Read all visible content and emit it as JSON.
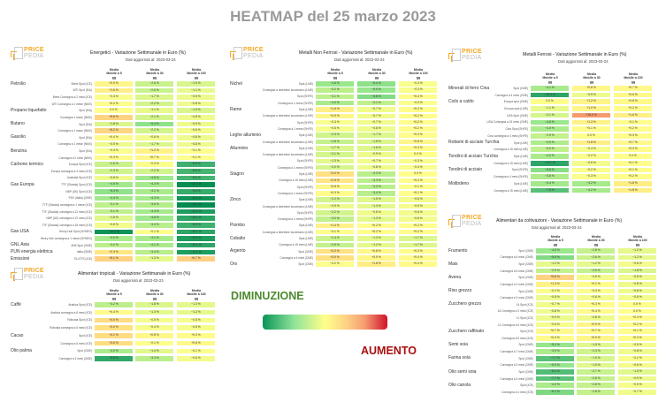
{
  "title": "HEATMAP del 25 marzo 2023",
  "logo": {
    "line1": "PRICE",
    "line2": "PEDIA"
  },
  "columns": [
    "Media Mobile a 5 gg",
    "Media Mobile a 30 gg",
    "Media Mobile a 100 gg"
  ],
  "legend": {
    "decrease": "DIMINUZIONE",
    "increase": "AUMENTO",
    "colors": [
      "#0a9458",
      "#8fe39a",
      "#ffff8a",
      "#fdcf84",
      "#f59b6f",
      "#d0122c"
    ]
  },
  "panels": [
    {
      "title": "Energetici - Variazione Settimanale in Euro (%)",
      "date": "Dati aggiornati al: 2023-03-24",
      "groups": [
        {
          "name": "Petrolio",
          "rows": [
            [
              "Brent Spot (ICE)",
              0.9,
              -2.6,
              -1.9
            ],
            [
              "WTI Spot (EIA)",
              1.6,
              -2.6,
              -1.1
            ],
            [
              "Brent Consegna a 2 mesi (ICE)",
              -0.3,
              -1.7,
              -0.9
            ],
            [
              "WTI Consegna a 1 mese (NMX)",
              0.2,
              -2.2,
              -0.8
            ]
          ]
        },
        {
          "name": "Propano liquefatto",
          "rows": [
            [
              "Spot (EIA)",
              0.0,
              -1.1,
              -1.9
            ],
            [
              "Consegna 1 mese (NMX)",
              5.6,
              -2.1,
              -0.8
            ]
          ]
        },
        {
          "name": "Butano",
          "rows": [
            [
              "Spot (EIA)",
              -1.8,
              -5.3,
              -0.9
            ],
            [
              "Consegna a 1 mese (NMX)",
              5.2,
              -2.2,
              -0.6
            ]
          ]
        },
        {
          "name": "Gasolio",
          "rows": [
            [
              "Spot (EIA)",
              0.4,
              -0.6,
              -0.8
            ],
            [
              "Consegna a 1 mese (NMX)",
              -0.9,
              -1.7,
              -0.8
            ]
          ]
        },
        {
          "name": "Benzina",
          "rows": [
            [
              "Spot (EIA)",
              -0.3,
              1.2,
              -0.1
            ],
            [
              "Consegna a 2 mesi (NMX)",
              0.3,
              0.7,
              -0.1
            ]
          ]
        },
        {
          "name": "Carbone termico",
          "rows": [
            [
              "Europa Spot (ICE)",
              -2.6,
              -0.3,
              -8.9
            ],
            [
              "Europa consegna a 3 mesi (ICE)",
              -2.3,
              -2.2,
              -8.6
            ],
            [
              "Australia Spot (ICE)",
              -0.8,
              -4.6,
              -8.6
            ]
          ]
        },
        {
          "name": "Gas Europa",
          "rows": [
            [
              "TTF (Olanda) Spot (ICE)",
              -4.5,
              -4.3,
              -12.7
            ],
            [
              "NBP (UK) Spot (ICE)",
              -5.3,
              -4.1,
              -9.4
            ],
            [
              "PSV (Italia) (GME)",
              -4.4,
              -4.3,
              -12.1
            ],
            [
              "TTF (Olanda) consegna a 1 mese (ICE)",
              -3.1,
              -3.6,
              -13.1
            ],
            [
              "TTF (Olanda) consegna a 12 mesi (ICE)",
              -3.1,
              -4.3,
              -11.1
            ],
            [
              "NBP (UK) consegna a 12 mesi (ICE)",
              -1.5,
              -4.6,
              -10.1
            ],
            [
              "TTF (Olanda) consegna a 18 mesi (ICE)",
              -0.6,
              -3.4,
              -8.9
            ]
          ]
        },
        {
          "name": "Gas USA",
          "rows": [
            [
              "Henry Hub Spot (NYMEX)",
              -12.1,
              -0.1,
              -10.1
            ],
            [
              "Henry Hub consegna a 1 mese (NYMEX)",
              -4.0,
              -4.1,
              -11.1
            ]
          ]
        },
        {
          "name": "GNL Asia",
          "rows": [
            [
              "JKM Spot (CME)",
              -3.2,
              -4.1,
              -10.1
            ]
          ]
        },
        {
          "name": "PUN energia elettrica",
          "rows": [
            [
              "Italia (GME)",
              2.3,
              -3.4,
              -11.1
            ]
          ]
        },
        {
          "name": "Emissioni",
          "rows": [
            [
              "EU ETS (ICE)",
              6.1,
              -1.3,
              6.7
            ]
          ]
        }
      ]
    },
    {
      "title": "Alimentari tropicali - Variazione Settimanale in Euro (%)",
      "date": "Dati aggiornati al: 2023-03-23",
      "groups": [
        {
          "name": "Caffè",
          "rows": [
            [
              "Arabica Spot (ICE)",
              -3.2,
              -1.8,
              -1.3
            ],
            [
              "Arabica consegna a 6 mesi (ICE)",
              0.4,
              -1.3,
              -1.2
            ],
            [
              "Robusta Spot (ICE)",
              4.0,
              -0.5,
              -0.5
            ],
            [
              "Robusta consegna a 6 mesi (ICE)",
              3.0,
              -0.4,
              -0.5
            ]
          ]
        },
        {
          "name": "Cacao",
          "rows": [
            [
              "Spot (ICE)",
              4.1,
              0.8,
              0.3
            ],
            [
              "Consegna a 6 mesi (ICE)",
              3.6,
              -0.1,
              0.6
            ]
          ]
        },
        {
          "name": "Olio palma",
          "rows": [
            [
              "Spot (CME)",
              -4.0,
              -1.4,
              -0.1
            ],
            [
              "Consegna a 3 mesi (CME)",
              -9.8,
              -3.3,
              -0.6
            ]
          ]
        }
      ]
    },
    {
      "title": "Metalli Non Ferrosi - Variazione Settimanale in Euro (%)",
      "date": "Dati aggiornati al: 2023-03-24",
      "groups": [
        {
          "name": "Nichel",
          "rows": [
            [
              "Spot (LME)",
              -4.8,
              -5.4,
              -0.3
            ],
            [
              "Consegna a dicembre successivo (LME)",
              -3.2,
              -5.0,
              -0.3
            ],
            [
              "Spot (SHFE)",
              -3.1,
              -5.8,
              0.3
            ],
            [
              "Consegna a 1 mese (SHFE)",
              -4.0,
              -3.1,
              -0.3
            ]
          ]
        },
        {
          "name": "Rame",
          "rows": [
            [
              "Spot (LME)",
              1.6,
              -0.7,
              0.2
            ],
            [
              "Consegna a dicembre successivo (LME)",
              0.9,
              -0.7,
              0.2
            ],
            [
              "Spot (SHFE)",
              -0.3,
              -0.7,
              0.2
            ],
            [
              "Consegna a 1 mese (SHFE)",
              -0.5,
              -0.8,
              0.2
            ]
          ]
        },
        {
          "name": "Leghe alluminio",
          "rows": [
            [
              "Spot (LME)",
              -2.3,
              -1.7,
              0.3
            ],
            [
              "Consegna a dicembre successivo (LME)",
              -2.8,
              -1.8,
              0.8
            ]
          ]
        },
        {
          "name": "Alluminio",
          "rows": [
            [
              "Spot (LME)",
              -1.7,
              -1.6,
              0.3
            ],
            [
              "Consegna a dicembre successivo (LME)",
              -2.1,
              -0.9,
              0.0
            ],
            [
              "Spot (SHFE)",
              -1.3,
              -0.7,
              -0.3
            ],
            [
              "Consegna a 1 mese (SHFE)",
              -2.0,
              -0.8,
              -0.3
            ]
          ]
        },
        {
          "name": "Stagno",
          "rows": [
            [
              "Spot (LME)",
              3.0,
              -3.3,
              0.0
            ],
            [
              "Consegna a 15 mesi (LME)",
              2.5,
              -3.3,
              0.2
            ],
            [
              "Spot (SHFE)",
              0.8,
              -3.3,
              -0.1
            ],
            [
              "Consegna a 1 mese (SHFE)",
              0.3,
              -3.4,
              0.1
            ]
          ]
        },
        {
          "name": "Zinco",
          "rows": [
            [
              "Spot (LME)",
              -2.2,
              -1.5,
              -0.6
            ],
            [
              "Consegna a dicembre successivo (LME)",
              -0.9,
              -1.3,
              -0.5
            ],
            [
              "Spot (SHFE)",
              -2.2,
              -0.8,
              -0.6
            ],
            [
              "Consegna a 1 mese (SHFE)",
              -3.0,
              -1.3,
              -0.6
            ]
          ]
        },
        {
          "name": "Piombo",
          "rows": [
            [
              "Spot (LME)",
              1.4,
              0.2,
              0.2
            ],
            [
              "Consegna a dicembre successivo (LME)",
              -0.1,
              0.2,
              0.2
            ]
          ]
        },
        {
          "name": "Cobalto",
          "rows": [
            [
              "Spot (LME)",
              -2.4,
              -1.3,
              -1.7
            ],
            [
              "Consegna a 15 mesi (LME)",
              -2.9,
              -1.2,
              -1.7
            ]
          ]
        },
        {
          "name": "Argento",
          "rows": [
            [
              "Spot (CME)",
              3.0,
              0.8,
              0.3
            ],
            [
              "Consegna a 4 mesi (CME)",
              3.0,
              0.9,
              0.4
            ]
          ]
        },
        {
          "name": "Oro",
          "rows": [
            [
              "Spot (CME)",
              -0.2,
              1.8,
              0.4
            ]
          ]
        }
      ]
    },
    {
      "title": "Metalli Ferrosi - Variazione Settimanale in Euro (%)",
      "date": "Dati aggiornati al: 2023-03-24",
      "groups": [
        {
          "name": "Minerali di ferro Cina",
          "rows": [
            [
              "Spot (CME)",
              -4.1,
              0.8,
              0.7
            ],
            [
              "Consegna a 4 mesi (CME)",
              -10.0,
              -0.9,
              0.6
            ]
          ]
        },
        {
          "name": "Coils a caldo",
          "rows": [
            [
              "Europa spot (CME)",
              0.0,
              1.2,
              0.6
            ],
            [
              "Europa spot (LME)",
              -1.1,
              1.0,
              0.2
            ],
            [
              "USA Spot (CME)",
              -2.1,
              15.0,
              1.6
            ],
            [
              "USA Consegna a 15 mesi (CME)",
              -4.8,
              1.3,
              -0.1
            ],
            [
              "Cina Spot (SHFE)",
              -4.0,
              0.1,
              0.2
            ],
            [
              "Cina consegna a 4 mesi (SHFE)",
              -2.9,
              0.0,
              0.3
            ]
          ]
        },
        {
          "name": "Rottami di acciaio Turchia",
          "rows": [
            [
              "Spot (LME)",
              -3.9,
              1.8,
              0.7
            ],
            [
              "Consegna a 15 mesi (LME)",
              -3.0,
              -0.4,
              0.3
            ]
          ]
        },
        {
          "name": "Tondini di acciaio Turchia",
          "rows": [
            [
              "Spot (LME)",
              -4.0,
              -0.2,
              0.0
            ],
            [
              "Consegna a 15 mesi (LME)",
              -10.1,
              -0.6,
              0.1
            ]
          ]
        },
        {
          "name": "Tondini di acciaio",
          "rows": [
            [
              "Spot (SHFE)",
              -5.6,
              -0.2,
              0.1
            ],
            [
              "Consegna a 4 mesi (SHFE)",
              -3.8,
              -0.3,
              0.2
            ]
          ]
        },
        {
          "name": "Molibdeno",
          "rows": [
            [
              "Spot (LME)",
              -4.4,
              -4.2,
              1.8
            ],
            [
              "Consegna a 15 mesi (LME)",
              -7.8,
              -4.2,
              1.8
            ]
          ]
        }
      ]
    },
    {
      "title": "Alimentari da coltivazioni - Variazione Settimanale in Euro (%)",
      "date": "Dati aggiornati al: 2023-03-24",
      "groups": [
        {
          "name": "Frumento",
          "rows": [
            [
              "Spot (CME)",
              -4.8,
              -2.8,
              -1.2
            ],
            [
              "Consegna a 6 mesi (CME)",
              -5.9,
              -2.6,
              -1.2
            ]
          ]
        },
        {
          "name": "Mais",
          "rows": [
            [
              "Spot (CME)",
              -1.2,
              -1.2,
              -0.6
            ],
            [
              "Consegna a 6 mesi (CME)",
              -2.9,
              -2.9,
              -1.8
            ]
          ]
        },
        {
          "name": "Avena",
          "rows": [
            [
              "Spot (CME)",
              5.8,
              -0.6,
              -0.8
            ],
            [
              "Consegna a 3 mesi (CME)",
              1.3,
              0.2,
              -0.8
            ]
          ]
        },
        {
          "name": "Riso grezzo",
          "rows": [
            [
              "Spot (CME)",
              -0.2,
              -0.3,
              -0.8
            ],
            [
              "Consegna a 3 mesi (CME)",
              -0.8,
              -0.6,
              -0.6
            ]
          ]
        },
        {
          "name": "Zucchero grezzo",
          "rows": [
            [
              "14 Spot (ICE)",
              -0.7,
              0.3,
              0.0
            ],
            [
              "16 Consegna a 3 mesi (ICE)",
              -0.8,
              0.4,
              0.0
            ],
            [
              "11 Spot (ICE)",
              -0.9,
              -0.8,
              0.3
            ],
            [
              "11 Consegna a 6 mesi (ICE)",
              -0.5,
              0.9,
              0.2
            ]
          ]
        },
        {
          "name": "Zucchero raffinato",
          "rows": [
            [
              "Spot (ICE)",
              0.7,
              0.7,
              0.1
            ],
            [
              "Consegna a 6 mesi (ICE)",
              0.3,
              0.9,
              0.3
            ]
          ]
        },
        {
          "name": "Semi soia",
          "rows": [
            [
              "Spot (CME)",
              -5.0,
              -1.5,
              -0.5
            ],
            [
              "Consegna a 7 mesi (CME)",
              -3.9,
              -2.3,
              -0.8
            ]
          ]
        },
        {
          "name": "Farina soia",
          "rows": [
            [
              "Spot (CME)",
              -7.7,
              -1.9,
              -0.2
            ],
            [
              "Consegna a 3 mesi (CME)",
              -5.0,
              -1.5,
              -0.6
            ]
          ]
        },
        {
          "name": "Olio semi soia",
          "rows": [
            [
              "Spot (CME)",
              -8.0,
              -2.7,
              -1.5
            ],
            [
              "Consegna a 3 mesi (CME)",
              -7.7,
              -2.8,
              -0.9
            ]
          ]
        },
        {
          "name": "Olio canola",
          "rows": [
            [
              "Spot (ICE)",
              -4.0,
              -2.8,
              -0.5
            ],
            [
              "Consegna a 4 mesi (ICE)",
              -6.1,
              -2.8,
              -0.7
            ]
          ]
        }
      ]
    }
  ]
}
